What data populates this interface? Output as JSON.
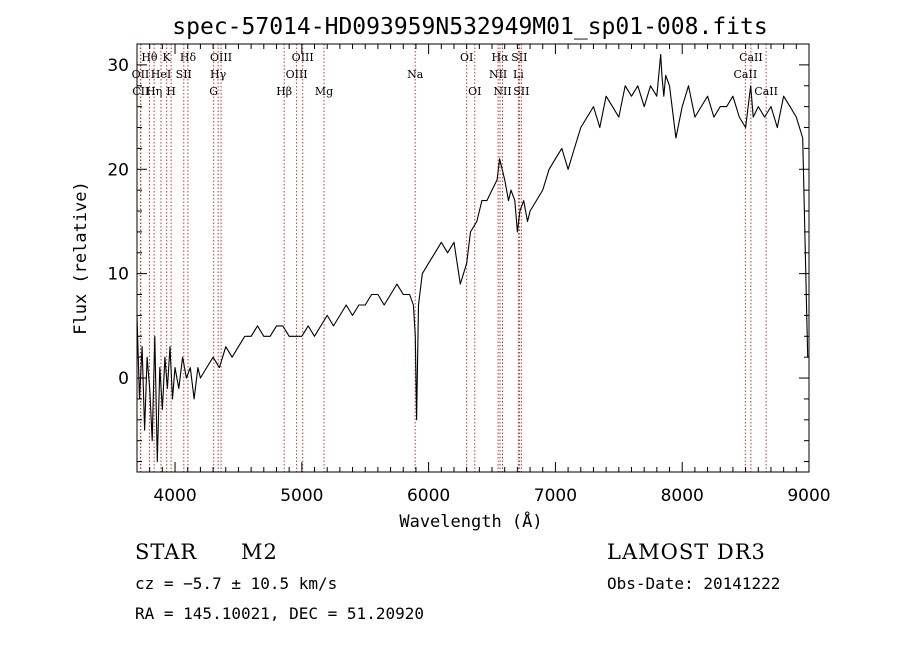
{
  "chart_data": {
    "type": "line",
    "title": "spec-57014-HD093959N532949M01_sp01-008.fits",
    "xlabel": "Wavelength (Å)",
    "ylabel": "Flux (relative)",
    "xlim": [
      3700,
      9000
    ],
    "ylim": [
      -9,
      32
    ],
    "x_ticks": [
      4000,
      5000,
      6000,
      7000,
      8000,
      9000
    ],
    "y_ticks": [
      0,
      10,
      20,
      30
    ],
    "series": [
      {
        "name": "spectrum",
        "x": [
          3700,
          3720,
          3740,
          3760,
          3780,
          3800,
          3820,
          3840,
          3860,
          3880,
          3900,
          3920,
          3940,
          3960,
          3980,
          4000,
          4030,
          4060,
          4090,
          4120,
          4150,
          4180,
          4200,
          4250,
          4300,
          4350,
          4400,
          4450,
          4500,
          4550,
          4600,
          4650,
          4700,
          4750,
          4800,
          4850,
          4900,
          4950,
          5000,
          5050,
          5100,
          5150,
          5200,
          5250,
          5300,
          5350,
          5400,
          5450,
          5500,
          5550,
          5600,
          5650,
          5700,
          5750,
          5800,
          5850,
          5880,
          5895,
          5905,
          5920,
          5950,
          6000,
          6050,
          6100,
          6150,
          6200,
          6250,
          6300,
          6330,
          6380,
          6420,
          6460,
          6500,
          6540,
          6560,
          6600,
          6630,
          6650,
          6680,
          6700,
          6720,
          6750,
          6780,
          6800,
          6850,
          6900,
          6950,
          7000,
          7050,
          7100,
          7150,
          7200,
          7250,
          7300,
          7350,
          7400,
          7450,
          7500,
          7550,
          7600,
          7650,
          7700,
          7750,
          7800,
          7830,
          7840,
          7855,
          7870,
          7900,
          7950,
          8000,
          8050,
          8100,
          8150,
          8200,
          8250,
          8300,
          8350,
          8400,
          8450,
          8500,
          8540,
          8560,
          8600,
          8650,
          8700,
          8750,
          8800,
          8850,
          8900,
          8950,
          8990
        ],
        "y": [
          6,
          -2,
          3,
          -5,
          2,
          -1,
          -6,
          4,
          -8,
          1,
          -3,
          2,
          -1,
          3,
          -2,
          1,
          -1,
          2,
          0,
          1,
          -2,
          1,
          0,
          1,
          2,
          1,
          3,
          2,
          3,
          4,
          4,
          5,
          4,
          4,
          5,
          5,
          4,
          4,
          4,
          5,
          4,
          5,
          6,
          5,
          6,
          7,
          6,
          7,
          7,
          8,
          8,
          7,
          8,
          9,
          8,
          8,
          7,
          4,
          -4,
          7,
          10,
          11,
          12,
          13,
          12,
          13,
          9,
          11,
          14,
          15,
          17,
          17,
          18,
          19,
          21,
          19,
          17,
          18,
          17,
          14,
          16,
          17,
          15,
          16,
          17,
          18,
          20,
          21,
          22,
          20,
          22,
          24,
          25,
          26,
          24,
          27,
          26,
          25,
          28,
          27,
          28,
          26,
          28,
          27,
          31,
          29,
          27,
          29,
          28,
          23,
          26,
          28,
          25,
          26,
          27,
          25,
          26,
          26,
          27,
          25,
          24,
          28,
          25,
          26,
          25,
          26,
          24,
          27,
          26,
          25,
          23,
          2
        ]
      }
    ],
    "spectral_lines": [
      {
        "label": "Hθ",
        "x": 3798,
        "row": 1
      },
      {
        "label": "OII",
        "x": 3727,
        "row": 2
      },
      {
        "label": "CII",
        "x": 3730,
        "row": 3
      },
      {
        "label": "HeI",
        "x": 3889,
        "row": 2
      },
      {
        "label": "Hη",
        "x": 3835,
        "row": 3
      },
      {
        "label": "K",
        "x": 3934,
        "row": 1
      },
      {
        "label": "H",
        "x": 3969,
        "row": 3
      },
      {
        "label": "SII",
        "x": 4069,
        "row": 2
      },
      {
        "label": "Hδ",
        "x": 4102,
        "row": 1
      },
      {
        "label": "OIII",
        "x": 4363,
        "row": 1
      },
      {
        "label": "Hγ",
        "x": 4340,
        "row": 2
      },
      {
        "label": "G",
        "x": 4305,
        "row": 3
      },
      {
        "label": "Hβ",
        "x": 4861,
        "row": 3
      },
      {
        "label": "OIII",
        "x": 5007,
        "row": 1
      },
      {
        "label": "OIII",
        "x": 4959,
        "row": 2
      },
      {
        "label": "Mg",
        "x": 5175,
        "row": 3
      },
      {
        "label": "Na",
        "x": 5894,
        "row": 2
      },
      {
        "label": "OI",
        "x": 6300,
        "row": 1
      },
      {
        "label": "OI",
        "x": 6364,
        "row": 3
      },
      {
        "label": "Hα",
        "x": 6563,
        "row": 1
      },
      {
        "label": "SII",
        "x": 6716,
        "row": 1
      },
      {
        "label": "NII",
        "x": 6548,
        "row": 2
      },
      {
        "label": "Li",
        "x": 6708,
        "row": 2
      },
      {
        "label": "NII",
        "x": 6583,
        "row": 3
      },
      {
        "label": "SII",
        "x": 6731,
        "row": 3
      },
      {
        "label": "CaII",
        "x": 8542,
        "row": 1
      },
      {
        "label": "CaII",
        "x": 8498,
        "row": 2
      },
      {
        "label": "CaII",
        "x": 8662,
        "row": 3
      }
    ]
  },
  "info": {
    "object_class": "STAR",
    "subclass": "M2",
    "survey": "LAMOST DR3",
    "redshift": "cz = −5.7 ± 10.5 km/s",
    "obs_date": "Obs-Date: 20141222",
    "coords": "RA = 145.10021, DEC =  51.20920"
  }
}
